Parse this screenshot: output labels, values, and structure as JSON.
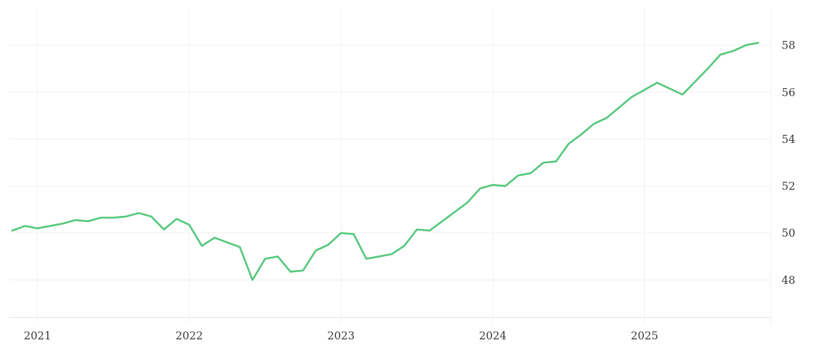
{
  "chart_data": {
    "type": "line",
    "title": "",
    "xlabel": "",
    "ylabel": "",
    "legend": "none",
    "grid": true,
    "frequency": "monthly",
    "x": [
      "2020-11",
      "2020-12",
      "2021-01",
      "2021-02",
      "2021-03",
      "2021-04",
      "2021-05",
      "2021-06",
      "2021-07",
      "2021-08",
      "2021-09",
      "2021-10",
      "2021-11",
      "2021-12",
      "2022-01",
      "2022-02",
      "2022-03",
      "2022-04",
      "2022-05",
      "2022-06",
      "2022-07",
      "2022-08",
      "2022-09",
      "2022-10",
      "2022-11",
      "2022-12",
      "2023-01",
      "2023-02",
      "2023-03",
      "2023-04",
      "2023-05",
      "2023-06",
      "2023-07",
      "2023-08",
      "2023-09",
      "2023-10",
      "2023-11",
      "2023-12",
      "2024-01",
      "2024-02",
      "2024-03",
      "2024-04",
      "2024-05",
      "2024-06",
      "2024-07",
      "2024-08",
      "2024-09",
      "2024-10",
      "2024-11",
      "2024-12",
      "2025-01",
      "2025-02",
      "2025-03",
      "2025-04",
      "2025-05",
      "2025-06",
      "2025-07",
      "2025-08",
      "2025-09",
      "2025-10"
    ],
    "values": [
      50.1,
      50.3,
      50.2,
      50.3,
      50.4,
      50.55,
      50.5,
      50.65,
      50.65,
      50.7,
      50.85,
      50.7,
      50.15,
      50.6,
      50.35,
      49.45,
      49.8,
      49.6,
      49.4,
      48.0,
      48.9,
      49.0,
      48.35,
      48.4,
      49.25,
      49.5,
      50.0,
      49.95,
      48.9,
      49.0,
      49.1,
      49.45,
      50.15,
      50.1,
      50.5,
      50.9,
      51.3,
      51.9,
      52.05,
      52.0,
      52.45,
      52.55,
      53.0,
      53.05,
      53.8,
      54.2,
      54.65,
      54.9,
      55.35,
      55.8,
      56.1,
      56.4,
      56.15,
      55.9,
      56.45,
      57.0,
      57.6,
      57.75,
      58.0,
      58.1
    ],
    "y_ticks": [
      48,
      50,
      52,
      54,
      56,
      58
    ],
    "x_ticks": [
      "2021",
      "2022",
      "2023",
      "2024",
      "2025"
    ],
    "ylim": [
      46.4,
      59.6
    ],
    "line_color": "#55c87c",
    "gridline_color": "#f0f0f0",
    "axis_line_color": "#e2e2e2",
    "tick_label_color": "#3a3a3a",
    "background_color": "#ffffff"
  }
}
